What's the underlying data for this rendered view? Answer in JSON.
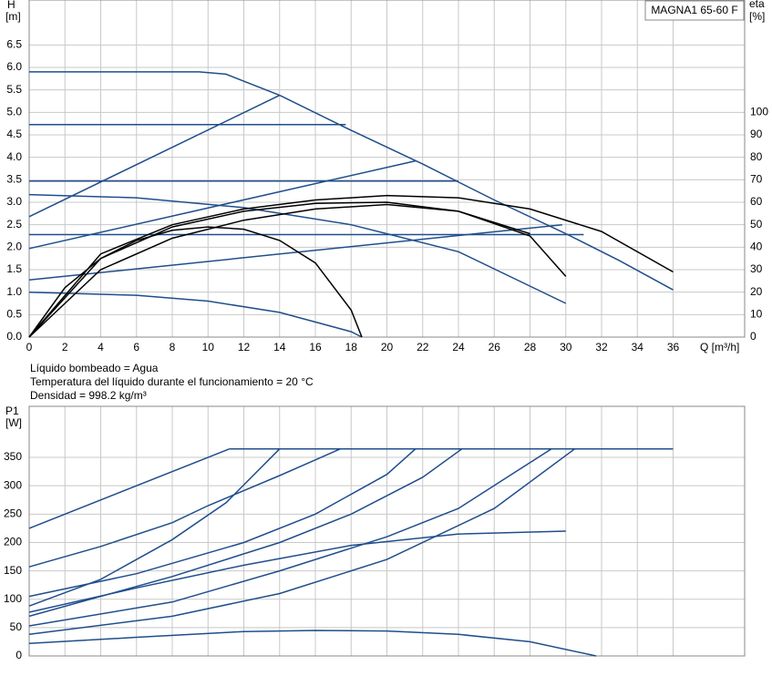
{
  "chart_data": [
    {
      "type": "line",
      "title": "MAGNA1 65-60 F",
      "ylabel": "H",
      "yunit": "[m]",
      "y2label": "eta",
      "y2unit": "[%]",
      "xlabel": "Q [m³/h]",
      "annotations": [
        "Líquido bombeado = Agua",
        "Temperatura del líquido durante el funcionamiento = 20 °C",
        "Densidad = 998.2 kg/m³"
      ],
      "xlim": [
        0,
        40
      ],
      "xticks": [
        0,
        2,
        4,
        6,
        8,
        10,
        12,
        14,
        16,
        18,
        20,
        22,
        24,
        26,
        28,
        30,
        32,
        34,
        36
      ],
      "ylim": [
        0,
        7.5
      ],
      "yticks": [
        {
          "value": 0,
          "label": "0.0"
        },
        0.5,
        {
          "value": 1,
          "label": "1.0"
        },
        1.5,
        {
          "value": 2,
          "label": "2.0"
        },
        2.5,
        {
          "value": 3,
          "label": "3.0"
        },
        3.5,
        {
          "value": 4,
          "label": "4.0"
        },
        4.5,
        {
          "value": 5,
          "label": "5.0"
        },
        5.5,
        {
          "value": 6,
          "label": "6.0"
        },
        6.5
      ],
      "y2lim": [
        0,
        150
      ],
      "y2ticks": [
        0,
        10,
        20,
        30,
        40,
        50,
        60,
        70,
        80,
        90,
        100
      ],
      "grid": true,
      "series": [
        {
          "color": "#1f4e8c",
          "x": [
            0,
            9.5,
            11,
            14,
            18,
            22,
            26,
            30,
            33,
            36
          ],
          "values": [
            5.9,
            5.9,
            5.85,
            5.38,
            4.6,
            3.85,
            3.05,
            2.3,
            1.7,
            1.05
          ]
        },
        {
          "color": "#1f4e8c",
          "x": [
            0,
            17.7
          ],
          "values": [
            4.73,
            4.73
          ]
        },
        {
          "color": "#1f4e8c",
          "x": [
            0,
            24
          ],
          "values": [
            3.47,
            3.47
          ]
        },
        {
          "color": "#1f4e8c",
          "x": [
            0,
            31
          ],
          "values": [
            2.28,
            2.28
          ]
        },
        {
          "color": "#1f4e8c",
          "x": [
            0,
            14
          ],
          "values": [
            2.68,
            5.38
          ]
        },
        {
          "color": "#1f4e8c",
          "x": [
            0,
            21.6
          ],
          "values": [
            1.97,
            3.92
          ]
        },
        {
          "color": "#1f4e8c",
          "x": [
            0,
            29.8
          ],
          "values": [
            1.27,
            2.5
          ]
        },
        {
          "color": "#1f4e8c",
          "x": [
            0,
            6,
            12,
            18,
            24,
            30
          ],
          "values": [
            3.17,
            3.1,
            2.88,
            2.5,
            1.9,
            0.75
          ]
        },
        {
          "color": "#1f4e8c",
          "x": [
            0,
            6,
            10,
            14,
            18,
            18.6
          ],
          "values": [
            1.0,
            0.93,
            0.8,
            0.55,
            0.12,
            0
          ]
        },
        {
          "color": "#000000",
          "axis": "y2",
          "x": [
            0,
            4,
            8,
            12,
            16,
            20,
            24,
            28,
            32,
            36
          ],
          "values": [
            0,
            37,
            50,
            57,
            61,
            63,
            62,
            57,
            47,
            29
          ]
        },
        {
          "color": "#000000",
          "axis": "y2",
          "x": [
            0,
            4,
            8,
            12,
            16,
            20,
            24,
            28,
            30
          ],
          "values": [
            0,
            35,
            49,
            56,
            59.5,
            60,
            56,
            45,
            27
          ]
        },
        {
          "color": "#000000",
          "axis": "y2",
          "x": [
            0,
            2,
            4,
            6,
            8,
            10,
            12,
            14,
            16,
            18,
            18.6
          ],
          "values": [
            0,
            22,
            35,
            43,
            47.5,
            49,
            48,
            43,
            33,
            12,
            0
          ]
        },
        {
          "color": "#000000",
          "axis": "y2",
          "x": [
            0,
            4,
            8,
            12,
            16,
            20,
            24,
            28
          ],
          "values": [
            0,
            30,
            44,
            52,
            57,
            59,
            56,
            46
          ]
        }
      ]
    },
    {
      "type": "line",
      "ylabel": "P1",
      "yunit": "[W]",
      "xlim": [
        0,
        40
      ],
      "ylim": [
        0,
        440
      ],
      "yticks": [
        0,
        50,
        100,
        150,
        200,
        250,
        300,
        350
      ],
      "grid": true,
      "series": [
        {
          "color": "#1f4e8c",
          "x": [
            11.2,
            36
          ],
          "values": [
            365,
            365
          ]
        },
        {
          "color": "#1f4e8c",
          "x": [
            0,
            11.2
          ],
          "values": [
            225,
            365
          ]
        },
        {
          "color": "#1f4e8c",
          "x": [
            0,
            4,
            8,
            10,
            14,
            17.4
          ],
          "values": [
            157,
            193,
            235,
            265,
            318,
            365
          ]
        },
        {
          "color": "#1f4e8c",
          "x": [
            0,
            4,
            8,
            11,
            14
          ],
          "values": [
            88,
            135,
            205,
            270,
            365
          ]
        },
        {
          "color": "#1f4e8c",
          "x": [
            0,
            6,
            12,
            16,
            20,
            21.6
          ],
          "values": [
            105,
            145,
            200,
            250,
            320,
            365
          ]
        },
        {
          "color": "#1f4e8c",
          "x": [
            0,
            8,
            14,
            18,
            22,
            24.2
          ],
          "values": [
            70,
            140,
            200,
            250,
            315,
            365
          ]
        },
        {
          "color": "#1f4e8c",
          "x": [
            0,
            8,
            14,
            20,
            24,
            29.2
          ],
          "values": [
            53,
            95,
            150,
            210,
            260,
            365
          ]
        },
        {
          "color": "#1f4e8c",
          "x": [
            0,
            8,
            14,
            20,
            26,
            30.5
          ],
          "values": [
            38,
            70,
            110,
            170,
            260,
            365
          ]
        },
        {
          "color": "#1f4e8c",
          "x": [
            0,
            6,
            12,
            18,
            24,
            30
          ],
          "values": [
            77,
            120,
            160,
            195,
            215,
            220
          ]
        },
        {
          "color": "#1f4e8c",
          "x": [
            0,
            6,
            12,
            16,
            20,
            24,
            28,
            31.7
          ],
          "values": [
            22,
            33,
            43,
            45,
            44,
            38,
            25,
            0
          ]
        }
      ]
    }
  ]
}
